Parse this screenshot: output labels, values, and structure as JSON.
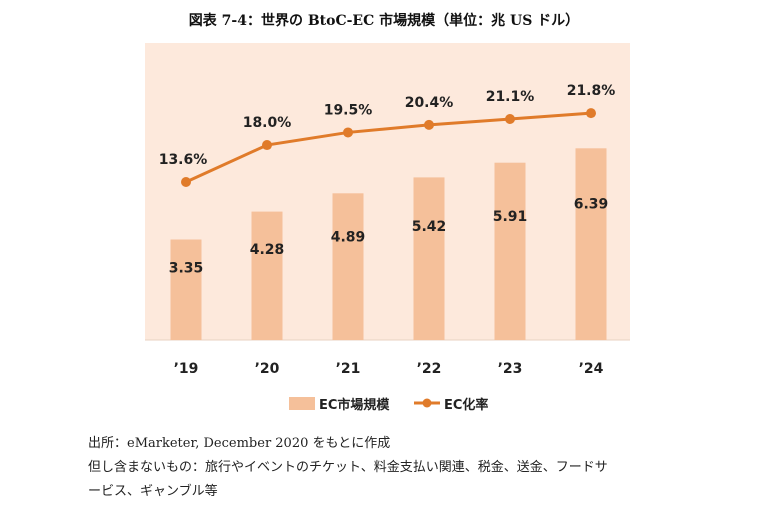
{
  "title": "図表 7-4：世界の BtoC-EC 市場規模（単位：兆 US ドル）",
  "chart_data": {
    "type": "bar+line",
    "categories": [
      "’19",
      "’20",
      "’21",
      "’22",
      "’23",
      "’24"
    ],
    "series": [
      {
        "name": "EC市場規模",
        "type": "bar",
        "values": [
          3.35,
          4.28,
          4.89,
          5.42,
          5.91,
          6.39
        ],
        "color": "#F5C09A"
      },
      {
        "name": "EC化率",
        "type": "line",
        "values": [
          13.6,
          18.0,
          19.5,
          20.4,
          21.1,
          21.8
        ],
        "labels": [
          "13.6%",
          "18.0%",
          "19.5%",
          "20.4%",
          "21.1%",
          "21.8%"
        ],
        "color": "#E07B2A"
      }
    ],
    "bar_labels": [
      "3.35",
      "4.28",
      "4.89",
      "5.42",
      "5.91",
      "6.39"
    ],
    "legend_position": "bottom",
    "plot_background": "#FDE9DC"
  },
  "notes": {
    "line1": "出所：eMarketer, December 2020 をもとに作成",
    "line2": "但し含まないもの：旅行やイベントのチケット、料金支払い関連、税金、送金、フードサ",
    "line3": "ービス、ギャンブル等"
  }
}
